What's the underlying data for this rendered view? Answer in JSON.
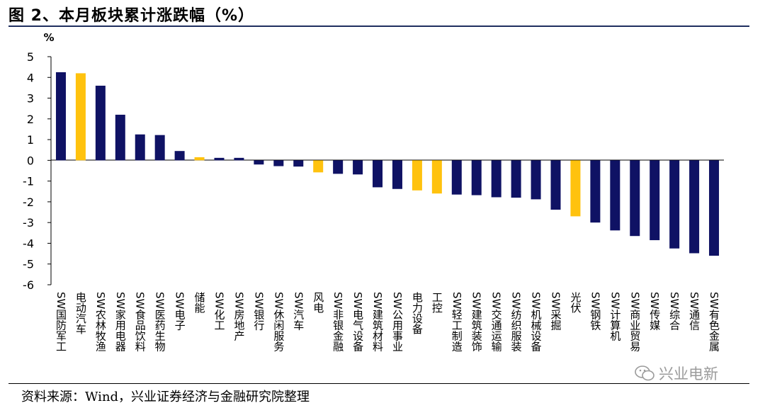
{
  "figure": {
    "title": "图 2、本月板块累计涨跌幅（%）",
    "source": "资料来源：Wind，兴业证券经济与金融研究院整理",
    "watermark": "兴业电新"
  },
  "colors": {
    "primary_bar": "#0f1264",
    "highlight_bar": "#ffc20e",
    "rule": "#1f2f5f"
  },
  "chart_data": {
    "type": "bar",
    "ylabel": "%",
    "ylim": [
      -6,
      5
    ],
    "yticks": [
      5,
      4,
      3,
      2,
      1,
      0,
      -1,
      -2,
      -3,
      -4,
      -5,
      -6
    ],
    "grid": false,
    "legend": "none",
    "categories": [
      "SW国防军工",
      "电动汽车",
      "SW农林牧渔",
      "SW家用电器",
      "SW食品饮料",
      "SW医药生物",
      "SW电子",
      "储能",
      "SW化工",
      "SW房地产",
      "SW银行",
      "SW休闲服务",
      "SW汽车",
      "风电",
      "SW非银金融",
      "SW电气设备",
      "SW建筑材料",
      "SW公用事业",
      "电力设备",
      "工控",
      "SW轻工制造",
      "SW建筑装饰",
      "SW交通运输",
      "SW纺织服装",
      "SW机械设备",
      "SW采掘",
      "光伏",
      "SW钢铁",
      "SW计算机",
      "SW商业贸易",
      "SW传媒",
      "SW综合",
      "SW通信",
      "SW有色金属"
    ],
    "values": [
      4.25,
      4.2,
      3.6,
      2.2,
      1.25,
      1.22,
      0.45,
      0.15,
      0.12,
      0.12,
      -0.2,
      -0.28,
      -0.3,
      -0.58,
      -0.65,
      -0.68,
      -1.3,
      -1.38,
      -1.45,
      -1.6,
      -1.65,
      -1.68,
      -1.78,
      -1.8,
      -1.88,
      -2.38,
      -2.7,
      -3.0,
      -3.38,
      -3.65,
      -3.85,
      -4.25,
      -4.48,
      -4.6
    ],
    "highlighted": [
      "电动汽车",
      "储能",
      "风电",
      "电力设备",
      "工控",
      "光伏"
    ]
  }
}
